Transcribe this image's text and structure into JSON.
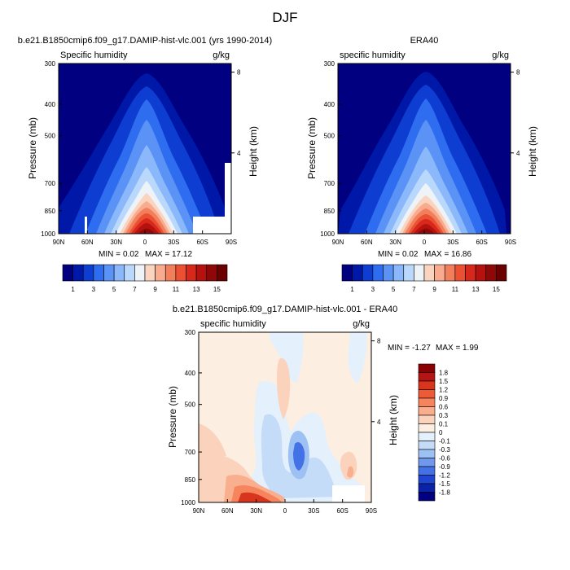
{
  "figure": {
    "title": "DJF"
  },
  "chart_data": [
    {
      "type": "heatmap",
      "title": "b.e21.B1850cmip6.f09_g17.DAMIP-hist-vlc.001 (yrs 1990-2014)",
      "left_label": "Specific humidity",
      "units": "g/kg",
      "ylabel": "Pressure (mb)",
      "ylabel_right": "Height (km)",
      "x_ticks": [
        "90N",
        "60N",
        "30N",
        "0",
        "30S",
        "60S",
        "90S"
      ],
      "y_ticks": [
        "300",
        "400",
        "500",
        "700",
        "850",
        "1000"
      ],
      "height_ticks": [
        "8",
        "4"
      ],
      "min_max": {
        "min_label": "MIN =",
        "min": "0.02",
        "max_label": "MAX =",
        "max": "17.12"
      },
      "colorbar": {
        "orientation": "horizontal",
        "labels": [
          "1",
          "3",
          "5",
          "7",
          "9",
          "11",
          "13",
          "15"
        ],
        "colors": [
          "#000080",
          "#0018a8",
          "#0d3dd1",
          "#2f6df0",
          "#5a93f5",
          "#8ab8fa",
          "#bad8fc",
          "#eef3f8",
          "#fbd4c0",
          "#f8ab8e",
          "#f27f5c",
          "#ea5031",
          "#d6291b",
          "#b5110f",
          "#8f0808",
          "#6b0000"
        ]
      },
      "peak_g_per_kg": 17.12
    },
    {
      "type": "heatmap",
      "title": "ERA40",
      "left_label": "specific humidity",
      "units": "g/kg",
      "ylabel": "Pressure (mb)",
      "ylabel_right": "Height (km)",
      "x_ticks": [
        "90N",
        "60N",
        "30N",
        "0",
        "30S",
        "60S",
        "90S"
      ],
      "y_ticks": [
        "300",
        "400",
        "500",
        "700",
        "850",
        "1000"
      ],
      "height_ticks": [
        "8",
        "4"
      ],
      "min_max": {
        "min_label": "MIN =",
        "min": "0.02",
        "max_label": "MAX =",
        "max": "16.86"
      },
      "colorbar": {
        "orientation": "horizontal",
        "labels": [
          "1",
          "3",
          "5",
          "7",
          "9",
          "11",
          "13",
          "15"
        ],
        "colors": [
          "#000080",
          "#0018a8",
          "#0d3dd1",
          "#2f6df0",
          "#5a93f5",
          "#8ab8fa",
          "#bad8fc",
          "#eef3f8",
          "#fbd4c0",
          "#f8ab8e",
          "#f27f5c",
          "#ea5031",
          "#d6291b",
          "#b5110f",
          "#8f0808",
          "#6b0000"
        ]
      },
      "peak_g_per_kg": 16.86
    },
    {
      "type": "heatmap",
      "title": "b.e21.B1850cmip6.f09_g17.DAMIP-hist-vlc.001 - ERA40",
      "left_label": "specific humidity",
      "units": "g/kg",
      "ylabel": "Pressure (mb)",
      "ylabel_right": "Height (km)",
      "x_ticks": [
        "90N",
        "60N",
        "30N",
        "0",
        "30S",
        "60S",
        "90S"
      ],
      "y_ticks": [
        "300",
        "400",
        "500",
        "700",
        "850",
        "1000"
      ],
      "height_ticks": [
        "8",
        "4"
      ],
      "min_max": {
        "min_label": "MIN =",
        "min": "-1.27",
        "max_label": "MAX =",
        "max": "1.99"
      },
      "colorbar": {
        "orientation": "vertical",
        "labels": [
          "1.8",
          "1.5",
          "1.2",
          "0.9",
          "0.6",
          "0.3",
          "0.1",
          "0",
          "-0.1",
          "-0.3",
          "-0.6",
          "-0.9",
          "-1.2",
          "-1.5",
          "-1.8"
        ],
        "colors": [
          "#8b0000",
          "#b41414",
          "#d8351f",
          "#ee5a36",
          "#f6855e",
          "#f9ae8d",
          "#fbd3bd",
          "#fdeee2",
          "#e4f0fb",
          "#c4dcf7",
          "#9dc1f3",
          "#7099ee",
          "#4371e6",
          "#2045d0",
          "#0a22a8",
          "#000080"
        ]
      }
    }
  ]
}
